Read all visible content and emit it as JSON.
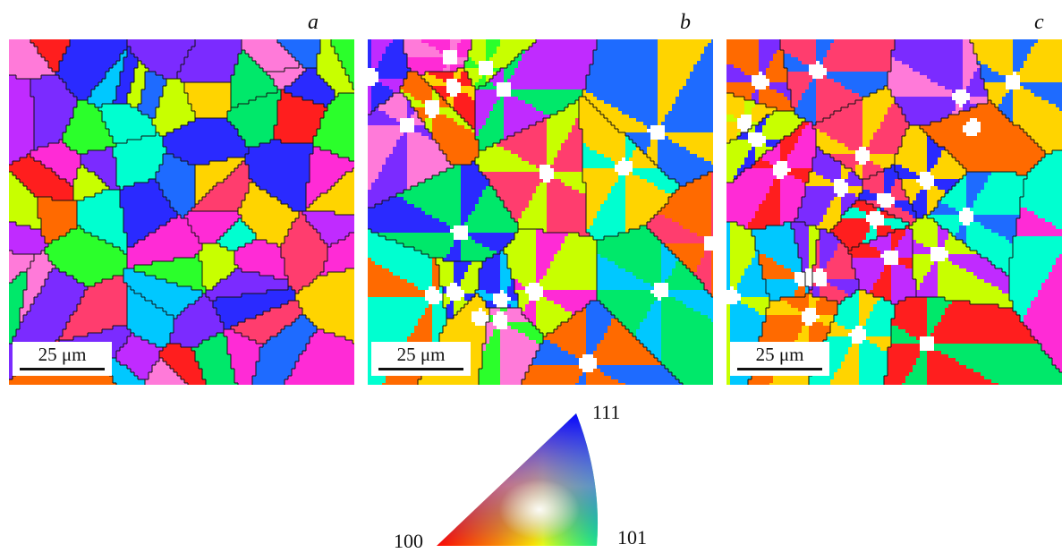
{
  "panels": [
    {
      "letter": "a",
      "scale_label": "25 μm"
    },
    {
      "letter": "b",
      "scale_label": "25 μm"
    },
    {
      "letter": "c",
      "scale_label": "25 μm"
    }
  ],
  "legend": {
    "corner_100": "100",
    "corner_101": "101",
    "corner_111": "111",
    "colors": {
      "100": "#ff0000",
      "101": "#00ff00",
      "111": "#0000ff"
    }
  }
}
